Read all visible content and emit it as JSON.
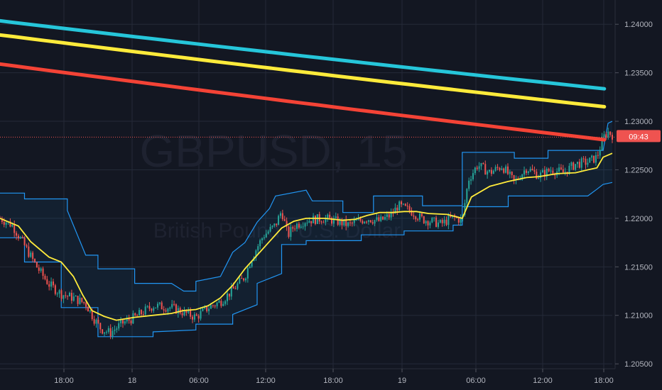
{
  "watermark": {
    "symbol": "GBPUSD, 15",
    "name": "British Pound / U.S. Dollar"
  },
  "colors": {
    "background": "#131722",
    "grid": "#242a38",
    "up": "#26a69a",
    "down": "#ef5350",
    "ma_cyan": "#26c6da",
    "ma_yellow": "#ffeb3b",
    "ma_red": "#f44336",
    "channel": "#2196f3",
    "baseline": "#ffeb3b"
  },
  "chart_data": {
    "type": "candlestick",
    "symbol": "GBPUSD",
    "interval": "15",
    "ylim": [
      1.2045,
      1.2425
    ],
    "y_ticks": [
      "1.24000",
      "1.23500",
      "1.23000",
      "1.22500",
      "1.22000",
      "1.21500",
      "1.21000",
      "1.20500"
    ],
    "x_ticks": [
      "18:00",
      "18",
      "06:00",
      "12:00",
      "18:00",
      "19",
      "06:00",
      "12:00",
      "18:00"
    ],
    "last_price": 1.22837,
    "countdown": "09:43",
    "grid": true,
    "series": [
      {
        "name": "",
        "role": "ma_slow",
        "color": "#26c6da",
        "y_start": 1.24035,
        "y_end": 1.23335
      },
      {
        "name": "",
        "role": "ma_mid",
        "color": "#ffeb3b",
        "y_start": 1.2389,
        "y_end": 1.2315
      },
      {
        "name": "",
        "role": "ma_fast",
        "color": "#f44336",
        "y_start": 1.2359,
        "y_end": 1.2281
      }
    ],
    "close_path": [
      [
        0,
        1.22
      ],
      [
        0.02,
        1.2193
      ],
      [
        0.04,
        1.2172
      ],
      [
        0.06,
        1.215
      ],
      [
        0.08,
        1.2132
      ],
      [
        0.1,
        1.2122
      ],
      [
        0.12,
        1.2118
      ],
      [
        0.14,
        1.2112
      ],
      [
        0.155,
        1.2095
      ],
      [
        0.165,
        1.2086
      ],
      [
        0.18,
        1.2082
      ],
      [
        0.2,
        1.2092
      ],
      [
        0.22,
        1.2098
      ],
      [
        0.25,
        1.211
      ],
      [
        0.28,
        1.2108
      ],
      [
        0.3,
        1.2103
      ],
      [
        0.32,
        1.2098
      ],
      [
        0.34,
        1.2108
      ],
      [
        0.36,
        1.2114
      ],
      [
        0.38,
        1.2126
      ],
      [
        0.4,
        1.214
      ],
      [
        0.41,
        1.2158
      ],
      [
        0.43,
        1.2182
      ],
      [
        0.45,
        1.2193
      ],
      [
        0.46,
        1.2208
      ],
      [
        0.47,
        1.2182
      ],
      [
        0.48,
        1.2192
      ],
      [
        0.5,
        1.2198
      ],
      [
        0.53,
        1.22
      ],
      [
        0.55,
        1.2197
      ],
      [
        0.57,
        1.2193
      ],
      [
        0.58,
        1.2196
      ],
      [
        0.6,
        1.22
      ],
      [
        0.62,
        1.2197
      ],
      [
        0.64,
        1.2204
      ],
      [
        0.65,
        1.2213
      ],
      [
        0.67,
        1.2208
      ],
      [
        0.69,
        1.2199
      ],
      [
        0.71,
        1.2196
      ],
      [
        0.72,
        1.2194
      ],
      [
        0.74,
        1.2201
      ],
      [
        0.755,
        1.2198
      ],
      [
        0.765,
        1.224
      ],
      [
        0.78,
        1.2255
      ],
      [
        0.8,
        1.2247
      ],
      [
        0.82,
        1.2254
      ],
      [
        0.84,
        1.2237
      ],
      [
        0.86,
        1.2252
      ],
      [
        0.88,
        1.2244
      ],
      [
        0.9,
        1.225
      ],
      [
        0.92,
        1.2247
      ],
      [
        0.94,
        1.2256
      ],
      [
        0.96,
        1.2258
      ],
      [
        0.975,
        1.2263
      ],
      [
        0.985,
        1.2283
      ],
      [
        0.993,
        1.2289
      ],
      [
        1.0,
        1.2286
      ]
    ],
    "baseline_path": [
      [
        0,
        1.22
      ],
      [
        0.03,
        1.2192
      ],
      [
        0.05,
        1.2176
      ],
      [
        0.08,
        1.216
      ],
      [
        0.1,
        1.2155
      ],
      [
        0.12,
        1.214
      ],
      [
        0.135,
        1.2121
      ],
      [
        0.15,
        1.2105
      ],
      [
        0.17,
        1.2099
      ],
      [
        0.19,
        1.2095
      ],
      [
        0.22,
        1.2098
      ],
      [
        0.25,
        1.21
      ],
      [
        0.28,
        1.2102
      ],
      [
        0.3,
        1.2105
      ],
      [
        0.32,
        1.2106
      ],
      [
        0.34,
        1.211
      ],
      [
        0.36,
        1.2118
      ],
      [
        0.38,
        1.2131
      ],
      [
        0.4,
        1.2148
      ],
      [
        0.42,
        1.2162
      ],
      [
        0.44,
        1.2176
      ],
      [
        0.46,
        1.219
      ],
      [
        0.48,
        1.2197
      ],
      [
        0.5,
        1.22
      ],
      [
        0.53,
        1.22
      ],
      [
        0.56,
        1.2198
      ],
      [
        0.58,
        1.2199
      ],
      [
        0.6,
        1.2203
      ],
      [
        0.62,
        1.2206
      ],
      [
        0.64,
        1.2206
      ],
      [
        0.66,
        1.2207
      ],
      [
        0.68,
        1.2207
      ],
      [
        0.7,
        1.2205
      ],
      [
        0.73,
        1.2204
      ],
      [
        0.755,
        1.22
      ],
      [
        0.77,
        1.2222
      ],
      [
        0.8,
        1.2233
      ],
      [
        0.83,
        1.2238
      ],
      [
        0.86,
        1.2242
      ],
      [
        0.88,
        1.2243
      ],
      [
        0.91,
        1.2246
      ],
      [
        0.94,
        1.2247
      ],
      [
        0.96,
        1.225
      ],
      [
        0.975,
        1.2252
      ],
      [
        0.985,
        1.2263
      ],
      [
        1.0,
        1.2267
      ]
    ],
    "upper_band": [
      [
        0,
        1.2226
      ],
      [
        0.04,
        1.2226
      ],
      [
        0.04,
        1.222
      ],
      [
        0.11,
        1.222
      ],
      [
        0.11,
        1.2208
      ],
      [
        0.14,
        1.2162
      ],
      [
        0.16,
        1.2162
      ],
      [
        0.16,
        1.2148
      ],
      [
        0.22,
        1.2148
      ],
      [
        0.22,
        1.2133
      ],
      [
        0.28,
        1.2133
      ],
      [
        0.3,
        1.2125
      ],
      [
        0.32,
        1.2125
      ],
      [
        0.32,
        1.2135
      ],
      [
        0.36,
        1.214
      ],
      [
        0.38,
        1.2165
      ],
      [
        0.4,
        1.2175
      ],
      [
        0.42,
        1.2196
      ],
      [
        0.44,
        1.221
      ],
      [
        0.45,
        1.2223
      ],
      [
        0.5,
        1.2229
      ],
      [
        0.51,
        1.2218
      ],
      [
        0.56,
        1.2218
      ],
      [
        0.56,
        1.2206
      ],
      [
        0.61,
        1.2206
      ],
      [
        0.61,
        1.2223
      ],
      [
        0.69,
        1.2223
      ],
      [
        0.69,
        1.2213
      ],
      [
        0.755,
        1.2213
      ],
      [
        0.755,
        1.2268
      ],
      [
        0.84,
        1.2268
      ],
      [
        0.84,
        1.2262
      ],
      [
        0.895,
        1.2262
      ],
      [
        0.895,
        1.227
      ],
      [
        0.985,
        1.227
      ],
      [
        0.993,
        1.2298
      ],
      [
        1.0,
        1.23
      ]
    ],
    "lower_band": [
      [
        0,
        1.218
      ],
      [
        0.04,
        1.218
      ],
      [
        0.04,
        1.2155
      ],
      [
        0.1,
        1.2155
      ],
      [
        0.1,
        1.2108
      ],
      [
        0.16,
        1.2108
      ],
      [
        0.16,
        1.2078
      ],
      [
        0.25,
        1.2078
      ],
      [
        0.25,
        1.2083
      ],
      [
        0.32,
        1.2085
      ],
      [
        0.32,
        1.2091
      ],
      [
        0.38,
        1.2091
      ],
      [
        0.38,
        1.2101
      ],
      [
        0.42,
        1.2111
      ],
      [
        0.42,
        1.2133
      ],
      [
        0.46,
        1.2143
      ],
      [
        0.46,
        1.2173
      ],
      [
        0.5,
        1.2173
      ],
      [
        0.5,
        1.2177
      ],
      [
        0.59,
        1.2177
      ],
      [
        0.59,
        1.2183
      ],
      [
        0.66,
        1.2183
      ],
      [
        0.66,
        1.2187
      ],
      [
        0.74,
        1.2187
      ],
      [
        0.74,
        1.2193
      ],
      [
        0.755,
        1.2193
      ],
      [
        0.755,
        1.2212
      ],
      [
        0.83,
        1.2212
      ],
      [
        0.83,
        1.2223
      ],
      [
        0.96,
        1.2223
      ],
      [
        0.975,
        1.223
      ],
      [
        0.985,
        1.2235
      ],
      [
        1.0,
        1.2237
      ]
    ]
  }
}
